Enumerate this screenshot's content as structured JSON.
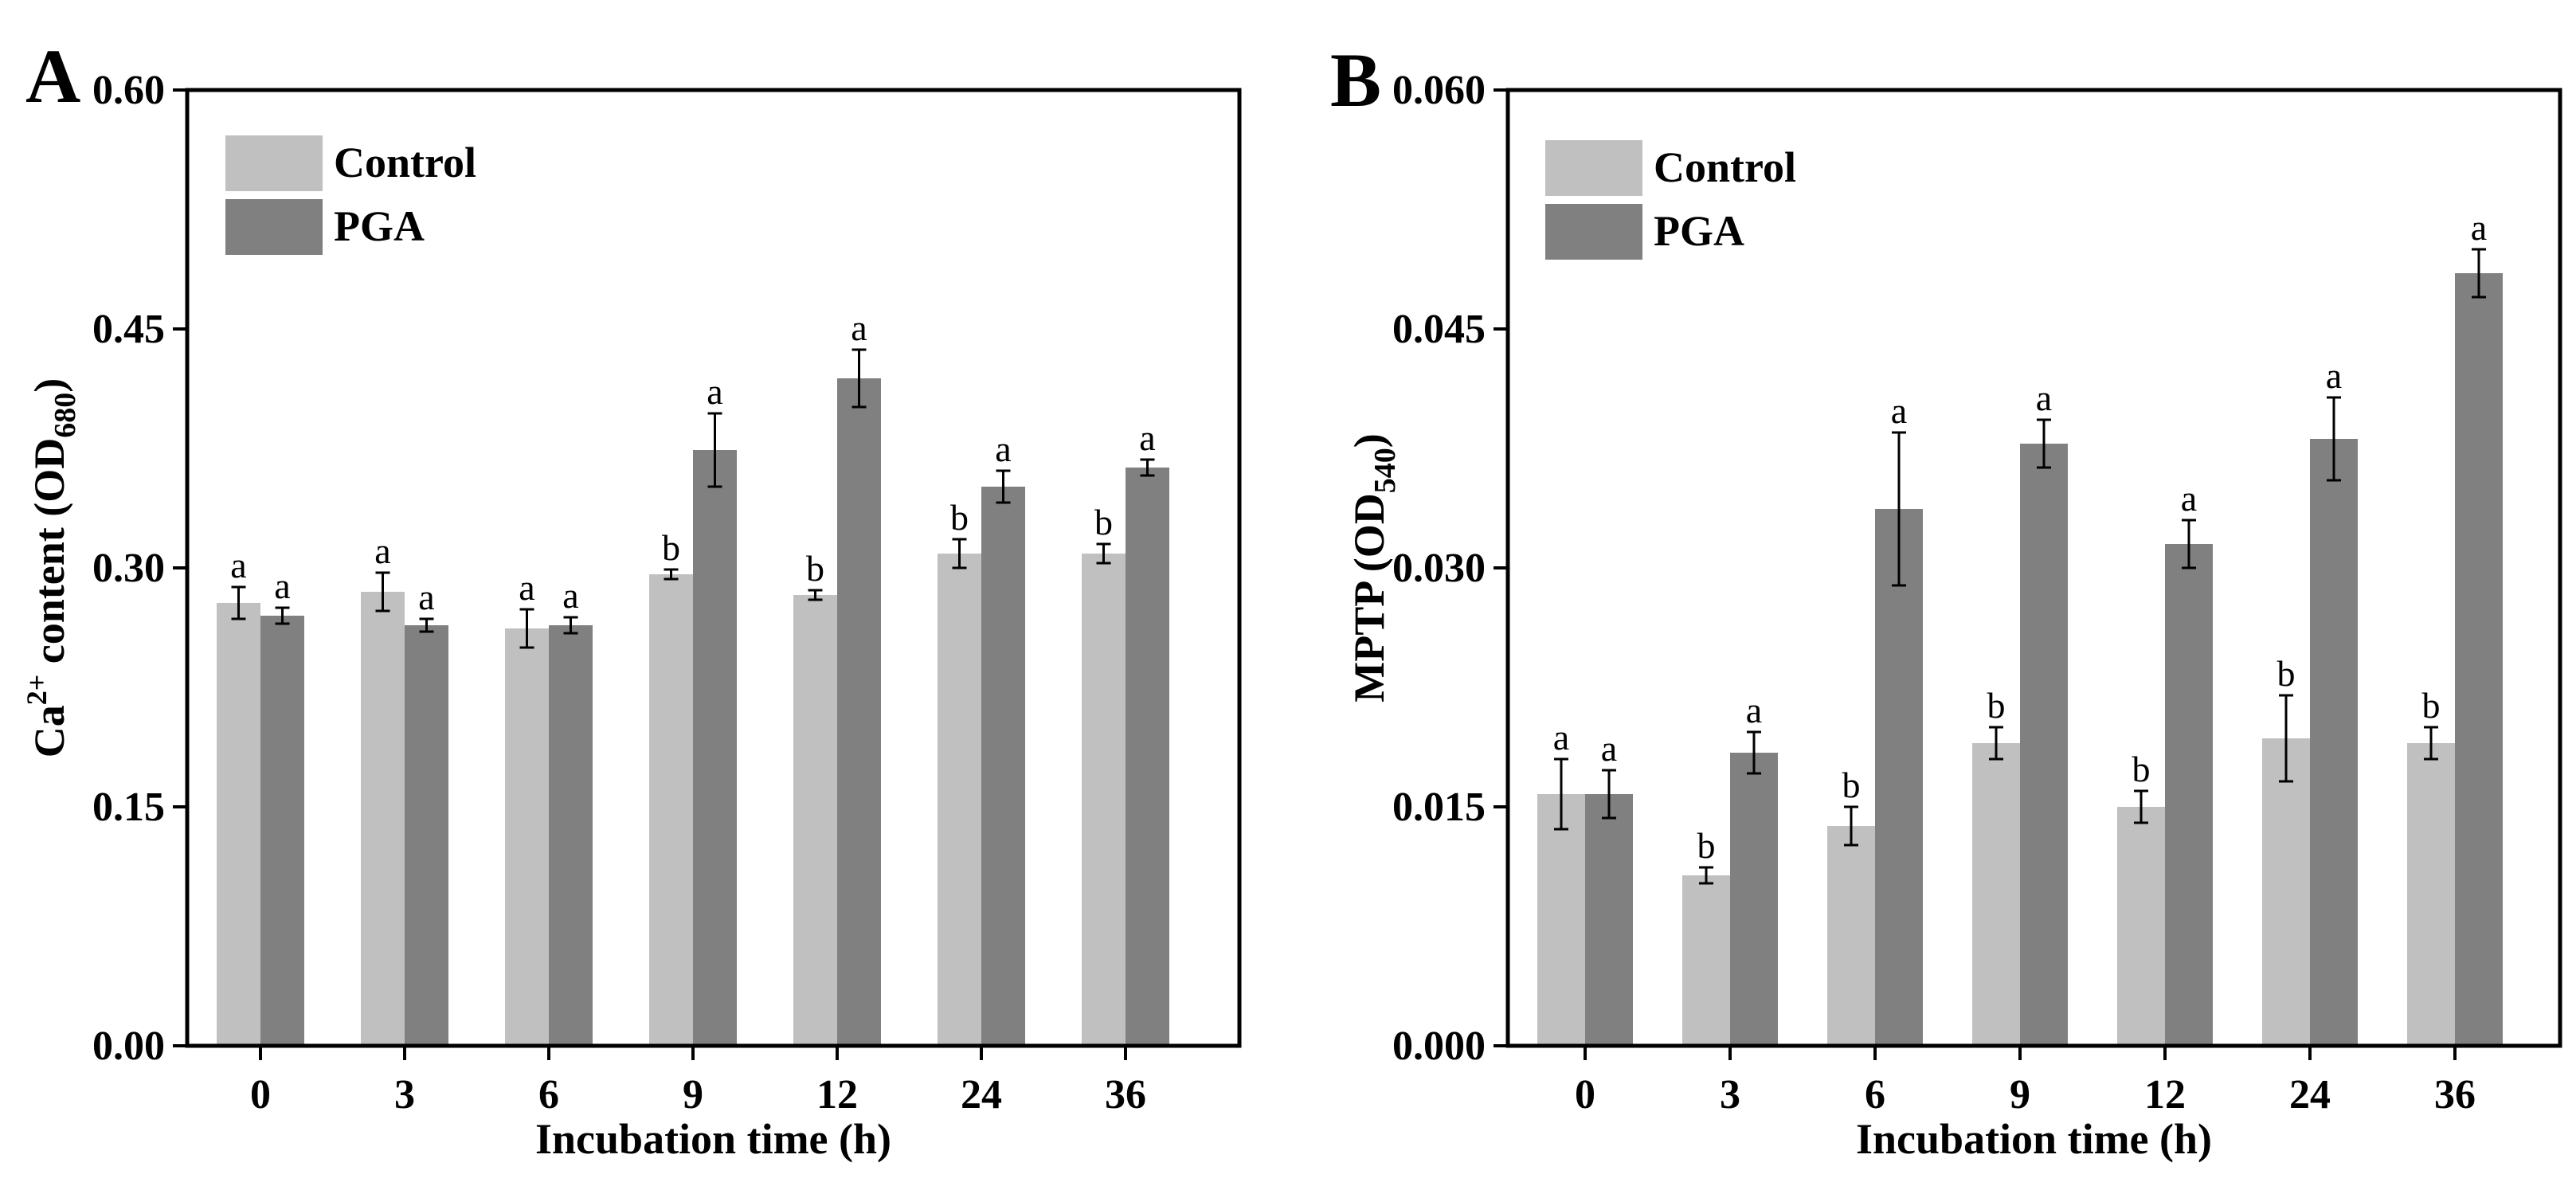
{
  "figure": {
    "panels": [
      {
        "letter": "A"
      },
      {
        "letter": "B"
      }
    ]
  },
  "chart_data": [
    {
      "type": "bar",
      "panel": "A",
      "categories": [
        "0",
        "3",
        "6",
        "9",
        "12",
        "24",
        "36"
      ],
      "xlabel": "Incubation time (h)",
      "ylabel": {
        "base": "Ca",
        "sup": "2+",
        "middle": " content (OD",
        "sub": "680",
        "end": ")"
      },
      "ylim": [
        0,
        0.6
      ],
      "yticks": [
        0.0,
        0.15,
        0.3,
        0.45,
        0.6
      ],
      "ytick_labels": [
        "0.00",
        "0.15",
        "0.30",
        "0.45",
        "0.60"
      ],
      "legend_position": "top-left",
      "series": [
        {
          "name": "Control",
          "color": "#c0c0c0",
          "values": [
            0.278,
            0.285,
            0.262,
            0.296,
            0.283,
            0.309,
            0.309
          ],
          "errors": [
            0.01,
            0.012,
            0.012,
            0.003,
            0.003,
            0.009,
            0.006
          ],
          "letters": [
            "a",
            "a",
            "a",
            "b",
            "b",
            "b",
            "b"
          ]
        },
        {
          "name": "PGA",
          "color": "#808080",
          "values": [
            0.27,
            0.264,
            0.264,
            0.374,
            0.419,
            0.351,
            0.363
          ],
          "errors": [
            0.005,
            0.004,
            0.005,
            0.023,
            0.018,
            0.01,
            0.005
          ],
          "letters": [
            "a",
            "a",
            "a",
            "a",
            "a",
            "a",
            "a"
          ]
        }
      ]
    },
    {
      "type": "bar",
      "panel": "B",
      "categories": [
        "0",
        "3",
        "6",
        "9",
        "12",
        "24",
        "36"
      ],
      "xlabel": "Incubation time (h)",
      "ylabel": {
        "base": "MPTP (OD",
        "sup": "",
        "middle": "",
        "sub": "540",
        "end": ")"
      },
      "ylim": [
        0,
        0.06
      ],
      "yticks": [
        0.0,
        0.015,
        0.03,
        0.045,
        0.06
      ],
      "ytick_labels": [
        "0.000",
        "0.015",
        "0.030",
        "0.045",
        "0.060"
      ],
      "legend_position": "top-left",
      "series": [
        {
          "name": "Control",
          "color": "#c0c0c0",
          "values": [
            0.0158,
            0.0107,
            0.0138,
            0.019,
            0.015,
            0.0193,
            0.019
          ],
          "errors": [
            0.0022,
            0.0005,
            0.0012,
            0.001,
            0.001,
            0.0027,
            0.001
          ],
          "letters": [
            "a",
            "b",
            "b",
            "b",
            "b",
            "b",
            "b"
          ]
        },
        {
          "name": "PGA",
          "color": "#808080",
          "values": [
            0.0158,
            0.0184,
            0.0337,
            0.0378,
            0.0315,
            0.0381,
            0.0485
          ],
          "errors": [
            0.0015,
            0.0013,
            0.0048,
            0.0015,
            0.0015,
            0.0026,
            0.0015
          ],
          "letters": [
            "a",
            "a",
            "a",
            "a",
            "a",
            "a",
            "a"
          ]
        }
      ]
    }
  ]
}
